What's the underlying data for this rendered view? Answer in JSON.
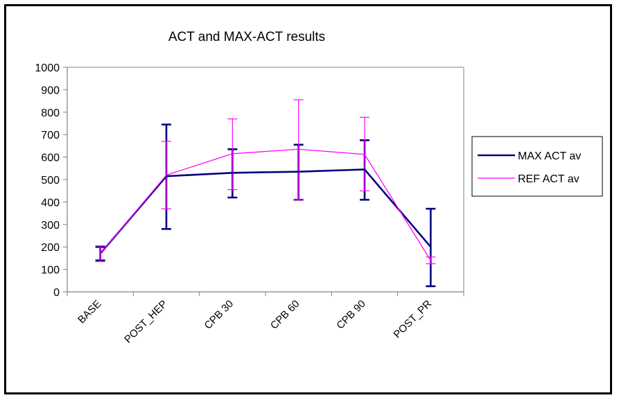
{
  "chart_data": {
    "type": "line",
    "title": "ACT and MAX-ACT results",
    "xlabel": "",
    "ylabel": "",
    "categories": [
      "BASE",
      "POST_HEP",
      "CPB 30",
      "CPB 60",
      "CPB 90",
      "POST_PR"
    ],
    "ylim": [
      0,
      1000
    ],
    "yticks": [
      0,
      100,
      200,
      300,
      400,
      500,
      600,
      700,
      800,
      900,
      1000
    ],
    "grid": false,
    "legend_position": "right",
    "series": [
      {
        "name": "MAX ACT av",
        "color": "#000080",
        "values": [
          170,
          515,
          530,
          535,
          545,
          200
        ],
        "err_low": [
          140,
          280,
          420,
          410,
          410,
          25
        ],
        "err_high": [
          200,
          745,
          635,
          655,
          675,
          370
        ]
      },
      {
        "name": "REF ACT av",
        "color": "#ff00ff",
        "values": [
          170,
          520,
          615,
          635,
          612,
          140
        ],
        "err_low": [
          135,
          370,
          455,
          410,
          450,
          125
        ],
        "err_high": [
          205,
          670,
          770,
          855,
          777,
          155
        ]
      }
    ]
  }
}
